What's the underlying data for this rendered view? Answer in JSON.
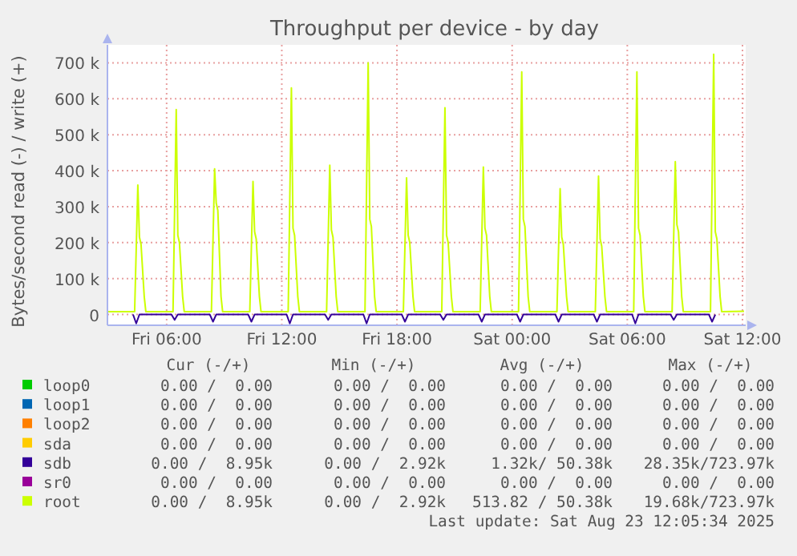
{
  "chart_data": {
    "type": "line",
    "title": "Throughput per device - by day",
    "ylabel": "Bytes/second read (-) / write (+)",
    "xlim": [
      "2025-08-22T02:55",
      "2025-08-23T12:10"
    ],
    "xticks": [
      {
        "value": "2025-08-22T06:00",
        "label": "Fri 06:00"
      },
      {
        "value": "2025-08-22T12:00",
        "label": "Fri 12:00"
      },
      {
        "value": "2025-08-22T18:00",
        "label": "Fri 18:00"
      },
      {
        "value": "2025-08-23T00:00",
        "label": "Sat 00:00"
      },
      {
        "value": "2025-08-23T06:00",
        "label": "Sat 06:00"
      },
      {
        "value": "2025-08-23T12:00",
        "label": "Sat 12:00"
      }
    ],
    "ylim": [
      -30000,
      750000
    ],
    "yticks": [
      0,
      {
        "value": 100000,
        "label": "100 k"
      },
      {
        "value": 200000,
        "label": "200 k"
      },
      {
        "value": 300000,
        "label": "300 k"
      },
      {
        "value": 400000,
        "label": "400 k"
      },
      {
        "value": 500000,
        "label": "500 k"
      },
      {
        "value": 600000,
        "label": "600 k"
      },
      {
        "value": 700000,
        "label": "700 k"
      }
    ],
    "grid": true,
    "legend": "bottom",
    "marker": "none",
    "line_style": "solid",
    "x": [
      "2025-08-22T02:55",
      "2025-08-22T04:20",
      "2025-08-22T04:30",
      "2025-08-22T04:35",
      "2025-08-22T04:40",
      "2025-08-22T04:50",
      "2025-08-22T04:55",
      "2025-08-22T06:20",
      "2025-08-22T06:30",
      "2025-08-22T06:35",
      "2025-08-22T06:40",
      "2025-08-22T06:50",
      "2025-08-22T06:55",
      "2025-08-22T08:20",
      "2025-08-22T08:30",
      "2025-08-22T08:35",
      "2025-08-22T08:40",
      "2025-08-22T08:50",
      "2025-08-22T08:55",
      "2025-08-22T10:20",
      "2025-08-22T10:30",
      "2025-08-22T10:35",
      "2025-08-22T10:40",
      "2025-08-22T10:50",
      "2025-08-22T10:55",
      "2025-08-22T12:20",
      "2025-08-22T12:30",
      "2025-08-22T12:35",
      "2025-08-22T12:40",
      "2025-08-22T12:50",
      "2025-08-22T12:55",
      "2025-08-22T14:20",
      "2025-08-22T14:30",
      "2025-08-22T14:35",
      "2025-08-22T14:40",
      "2025-08-22T14:50",
      "2025-08-22T14:55",
      "2025-08-22T16:20",
      "2025-08-22T16:30",
      "2025-08-22T16:35",
      "2025-08-22T16:40",
      "2025-08-22T16:50",
      "2025-08-22T16:55",
      "2025-08-22T18:20",
      "2025-08-22T18:30",
      "2025-08-22T18:35",
      "2025-08-22T18:40",
      "2025-08-22T18:50",
      "2025-08-22T18:55",
      "2025-08-22T20:20",
      "2025-08-22T20:30",
      "2025-08-22T20:35",
      "2025-08-22T20:40",
      "2025-08-22T20:50",
      "2025-08-22T20:55",
      "2025-08-22T22:20",
      "2025-08-22T22:30",
      "2025-08-22T22:35",
      "2025-08-22T22:40",
      "2025-08-22T22:50",
      "2025-08-22T22:55",
      "2025-08-23T00:20",
      "2025-08-23T00:30",
      "2025-08-23T00:35",
      "2025-08-23T00:40",
      "2025-08-23T00:50",
      "2025-08-23T00:55",
      "2025-08-23T02:20",
      "2025-08-23T02:30",
      "2025-08-23T02:35",
      "2025-08-23T02:40",
      "2025-08-23T02:50",
      "2025-08-23T02:55",
      "2025-08-23T04:20",
      "2025-08-23T04:30",
      "2025-08-23T04:35",
      "2025-08-23T04:40",
      "2025-08-23T04:50",
      "2025-08-23T04:55",
      "2025-08-23T06:20",
      "2025-08-23T06:30",
      "2025-08-23T06:35",
      "2025-08-23T06:40",
      "2025-08-23T06:50",
      "2025-08-23T06:55",
      "2025-08-23T08:20",
      "2025-08-23T08:30",
      "2025-08-23T08:35",
      "2025-08-23T08:40",
      "2025-08-23T08:50",
      "2025-08-23T08:55",
      "2025-08-23T10:20",
      "2025-08-23T10:30",
      "2025-08-23T10:35",
      "2025-08-23T10:40",
      "2025-08-23T10:50",
      "2025-08-23T10:55",
      "2025-08-23T12:05"
    ],
    "series": [
      {
        "name": "loop0",
        "color": "#00cc00",
        "values": [
          null,
          null,
          null,
          null,
          null,
          null,
          null,
          null,
          null,
          null,
          null,
          null,
          null,
          null,
          null,
          null,
          null,
          null,
          null,
          null,
          null,
          null,
          null,
          null,
          null,
          null,
          null,
          null,
          null,
          null,
          null,
          null,
          null,
          null,
          null,
          null,
          null,
          null,
          null,
          null,
          null,
          null,
          null,
          null,
          null,
          null,
          null,
          null,
          null,
          null,
          null,
          null,
          null,
          null,
          null,
          null,
          null,
          null,
          null,
          null,
          null,
          null,
          null,
          null,
          null,
          null,
          null,
          null,
          null,
          null,
          null,
          null,
          null,
          null,
          null,
          null,
          null,
          null,
          null,
          null,
          null,
          null,
          null,
          null,
          null,
          null,
          null,
          null,
          null,
          null,
          null,
          null,
          null,
          null,
          null,
          null,
          null,
          null
        ]
      },
      {
        "name": "loop1",
        "color": "#0066b3",
        "values": [
          null,
          null,
          null,
          null,
          null,
          null,
          null,
          null,
          null,
          null,
          null,
          null,
          null,
          null,
          null,
          null,
          null,
          null,
          null,
          null,
          null,
          null,
          null,
          null,
          null,
          null,
          null,
          null,
          null,
          null,
          null,
          null,
          null,
          null,
          null,
          null,
          null,
          null,
          null,
          null,
          null,
          null,
          null,
          null,
          null,
          null,
          null,
          null,
          null,
          null,
          null,
          null,
          null,
          null,
          null,
          null,
          null,
          null,
          null,
          null,
          null,
          null,
          null,
          null,
          null,
          null,
          null,
          null,
          null,
          null,
          null,
          null,
          null,
          null,
          null,
          null,
          null,
          null,
          null,
          null,
          null,
          null,
          null,
          null,
          null,
          null,
          null,
          null,
          null,
          null,
          null,
          null,
          null,
          null,
          null,
          null,
          null,
          null
        ]
      },
      {
        "name": "loop2",
        "color": "#ff8000",
        "values": [
          null,
          null,
          null,
          null,
          null,
          null,
          null,
          null,
          null,
          null,
          null,
          null,
          null,
          null,
          null,
          null,
          null,
          null,
          null,
          null,
          null,
          null,
          null,
          null,
          null,
          null,
          null,
          null,
          null,
          null,
          null,
          null,
          null,
          null,
          null,
          null,
          null,
          null,
          null,
          null,
          null,
          null,
          null,
          null,
          null,
          null,
          null,
          null,
          null,
          null,
          null,
          null,
          null,
          null,
          null,
          null,
          null,
          null,
          null,
          null,
          null,
          null,
          null,
          null,
          null,
          null,
          null,
          null,
          null,
          null,
          null,
          null,
          null,
          null,
          null,
          null,
          null,
          null,
          null,
          null,
          null,
          null,
          null,
          null,
          null,
          null,
          null,
          null,
          null,
          null,
          null,
          null,
          null,
          null,
          null,
          null,
          null,
          null
        ]
      },
      {
        "name": "sda",
        "color": "#ffcc00",
        "values": [
          null,
          null,
          null,
          null,
          null,
          null,
          null,
          null,
          null,
          null,
          null,
          null,
          null,
          null,
          null,
          null,
          null,
          null,
          null,
          null,
          null,
          null,
          null,
          null,
          null,
          null,
          null,
          null,
          null,
          null,
          null,
          null,
          null,
          null,
          null,
          null,
          null,
          null,
          null,
          null,
          null,
          null,
          null,
          null,
          null,
          null,
          null,
          null,
          null,
          null,
          null,
          null,
          null,
          null,
          null,
          null,
          null,
          null,
          null,
          null,
          null,
          null,
          null,
          null,
          null,
          null,
          null,
          null,
          null,
          null,
          null,
          null,
          null,
          null,
          null,
          null,
          null,
          null,
          null,
          null,
          null,
          null,
          null,
          null,
          null,
          null,
          null,
          null,
          null,
          null,
          null,
          null,
          null,
          null,
          null,
          null,
          null,
          null
        ]
      },
      {
        "name": "sdb",
        "color": "#330099",
        "x": [
          "2025-08-22T04:15",
          "2025-08-22T04:25",
          "2025-08-22T04:35",
          "2025-08-22T06:15",
          "2025-08-22T06:25",
          "2025-08-22T06:35",
          "2025-08-22T08:15",
          "2025-08-22T08:25",
          "2025-08-22T08:35",
          "2025-08-22T10:15",
          "2025-08-22T10:25",
          "2025-08-22T10:35",
          "2025-08-22T12:15",
          "2025-08-22T12:25",
          "2025-08-22T12:35",
          "2025-08-22T14:15",
          "2025-08-22T14:25",
          "2025-08-22T14:35",
          "2025-08-22T16:15",
          "2025-08-22T16:25",
          "2025-08-22T16:35",
          "2025-08-22T18:15",
          "2025-08-22T18:25",
          "2025-08-22T18:35",
          "2025-08-22T20:15",
          "2025-08-22T20:25",
          "2025-08-22T20:35",
          "2025-08-22T22:15",
          "2025-08-22T22:25",
          "2025-08-22T22:35",
          "2025-08-23T00:15",
          "2025-08-23T00:25",
          "2025-08-23T00:35",
          "2025-08-23T02:15",
          "2025-08-23T02:25",
          "2025-08-23T02:35",
          "2025-08-23T04:15",
          "2025-08-23T04:25",
          "2025-08-23T04:35",
          "2025-08-23T06:15",
          "2025-08-23T06:25",
          "2025-08-23T06:35",
          "2025-08-23T08:15",
          "2025-08-23T08:25",
          "2025-08-23T08:35",
          "2025-08-23T10:15",
          "2025-08-23T10:25",
          "2025-08-23T10:35"
        ],
        "values": [
          0,
          -25000,
          0,
          0,
          -15000,
          0,
          0,
          -20000,
          0,
          0,
          -20000,
          0,
          0,
          -25000,
          0,
          0,
          -15000,
          0,
          0,
          -25000,
          0,
          0,
          -20000,
          0,
          0,
          -15000,
          0,
          0,
          -20000,
          0,
          0,
          -20000,
          0,
          0,
          -20000,
          0,
          0,
          -20000,
          0,
          0,
          -25000,
          0,
          0,
          -15000,
          0,
          0,
          -20000,
          0
        ]
      },
      {
        "name": "sr0",
        "color": "#990099",
        "values": [
          null,
          null,
          null,
          null,
          null,
          null,
          null,
          null,
          null,
          null,
          null,
          null,
          null,
          null,
          null,
          null,
          null,
          null,
          null,
          null,
          null,
          null,
          null,
          null,
          null,
          null,
          null,
          null,
          null,
          null,
          null,
          null,
          null,
          null,
          null,
          null,
          null,
          null,
          null,
          null,
          null,
          null,
          null,
          null,
          null,
          null,
          null,
          null,
          null,
          null,
          null,
          null,
          null,
          null,
          null,
          null,
          null,
          null,
          null,
          null,
          null,
          null,
          null,
          null,
          null,
          null,
          null,
          null,
          null,
          null,
          null,
          null,
          null,
          null,
          null,
          null,
          null,
          null,
          null,
          null,
          null,
          null,
          null,
          null,
          null,
          null,
          null,
          null,
          null,
          null,
          null,
          null,
          null,
          null,
          null,
          null,
          null,
          null
        ]
      },
      {
        "name": "root",
        "color": "#ccff00",
        "values": [
          8000,
          8000,
          360000,
          215000,
          195000,
          50000,
          8000,
          8000,
          570000,
          220000,
          200000,
          50000,
          8000,
          8000,
          405000,
          310000,
          290000,
          50000,
          8000,
          8000,
          370000,
          230000,
          210000,
          50000,
          8000,
          8000,
          630000,
          240000,
          220000,
          50000,
          8000,
          8000,
          415000,
          235000,
          215000,
          50000,
          8000,
          8000,
          700000,
          265000,
          245000,
          50000,
          8000,
          8000,
          380000,
          220000,
          200000,
          50000,
          8000,
          8000,
          575000,
          220000,
          200000,
          50000,
          8000,
          8000,
          410000,
          240000,
          220000,
          50000,
          8000,
          8000,
          675000,
          265000,
          245000,
          50000,
          8000,
          8000,
          350000,
          215000,
          195000,
          50000,
          8000,
          8000,
          385000,
          210000,
          190000,
          50000,
          8000,
          8000,
          675000,
          240000,
          220000,
          50000,
          8000,
          8000,
          425000,
          250000,
          230000,
          50000,
          8000,
          8000,
          724000,
          230000,
          210000,
          50000,
          8000,
          9000
        ]
      }
    ],
    "annotations": [
      "Cur (-/+)",
      "Min (-/+)",
      "Avg (-/+)",
      "Max (-/+)",
      "0.00 /  0.00",
      "0.00 /  0.00",
      "0.00 /  0.00",
      "0.00 /  0.00",
      "0.00 /  0.00",
      "0.00 /  0.00",
      "0.00 /  0.00",
      "0.00 /  0.00",
      "0.00 /  0.00",
      "0.00 /  0.00",
      "0.00 /  0.00",
      "0.00 /  0.00",
      "0.00 /  0.00",
      "0.00 /  0.00",
      "0.00 /  0.00",
      "0.00 /  0.00",
      "0.00 /  8.95k",
      "0.00 /  2.92k",
      "1.32k/ 50.38k",
      "28.35k/723.97k",
      "0.00 /  0.00",
      "0.00 /  0.00",
      "0.00 /  0.00",
      "0.00 /  0.00",
      "0.00 /  8.95k",
      "0.00 /  2.92k",
      "513.82 / 50.38k",
      "19.68k/723.97k",
      "Last update: Sat Aug 23 12:05:34 2025"
    ]
  }
}
